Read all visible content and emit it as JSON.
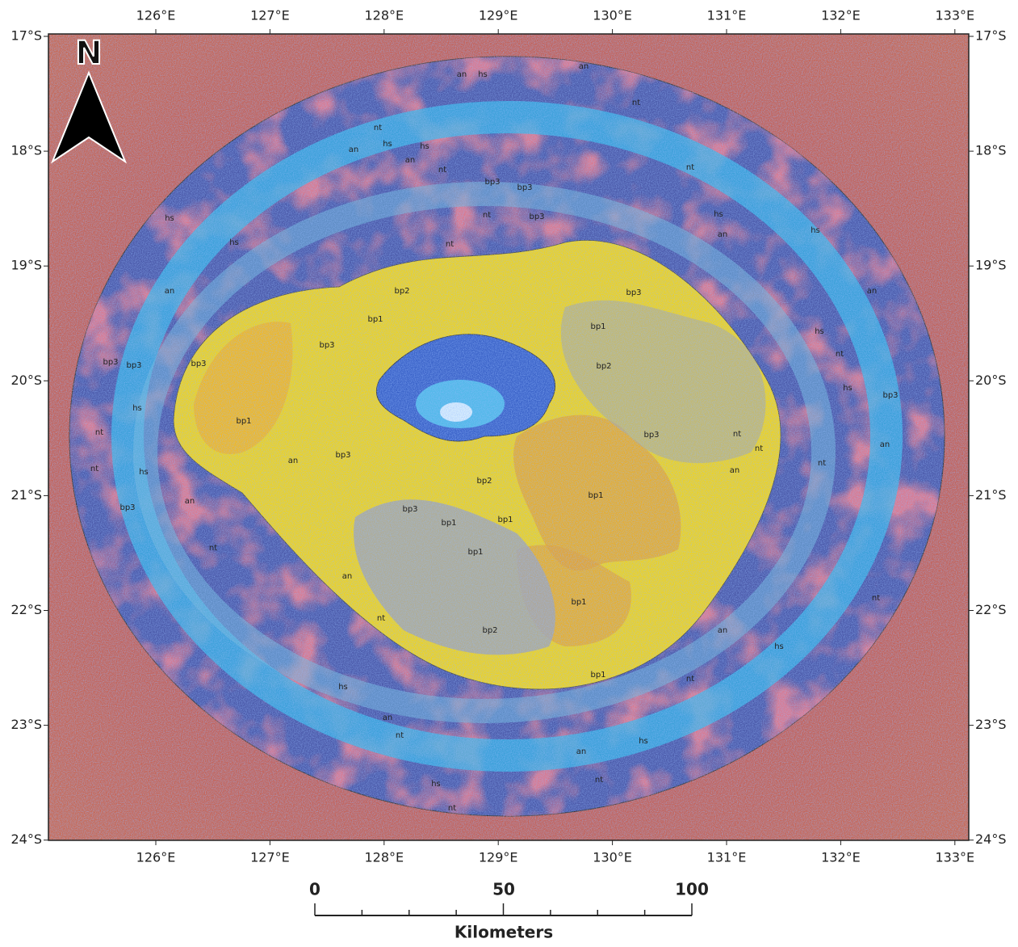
{
  "map": {
    "north": "N",
    "lon_labels": [
      "126°E",
      "127°E",
      "128°E",
      "129°E",
      "130°E",
      "131°E",
      "132°E",
      "133°E"
    ],
    "lat_labels": [
      "17°S",
      "18°S",
      "19°S",
      "20°S",
      "21°S",
      "22°S",
      "23°S",
      "24°S"
    ],
    "scale": {
      "ticks": [
        "0",
        "50",
        "100"
      ],
      "unit": "Kilometers"
    },
    "units": [
      "bp3",
      "bp3",
      "bp3",
      "nt",
      "nt",
      "bp3",
      "bp1",
      "bp2",
      "bp1",
      "bp3",
      "bp2",
      "bp1",
      "bp3",
      "an",
      "bp2",
      "bp3",
      "bp1",
      "bp3",
      "bp1",
      "bp1",
      "bp1",
      "bp1",
      "bp2",
      "bp1",
      "hs",
      "an",
      "hs",
      "bp3",
      "bp3",
      "bp3",
      "hs",
      "nt",
      "nt",
      "hs",
      "bp3",
      "an",
      "nt",
      "an",
      "nt",
      "hs",
      "an",
      "nt",
      "hs",
      "nt",
      "an",
      "nt",
      "hs",
      "nt",
      "an",
      "hs",
      "nt",
      "an",
      "nt",
      "nt",
      "hs",
      "bp3",
      "an",
      "hs",
      "hs",
      "nt",
      "hs",
      "an",
      "nt",
      "hs",
      "an",
      "hs",
      "an",
      "nt",
      "an",
      "hs",
      "an",
      "nt",
      "an",
      "nt",
      "nt"
    ]
  }
}
